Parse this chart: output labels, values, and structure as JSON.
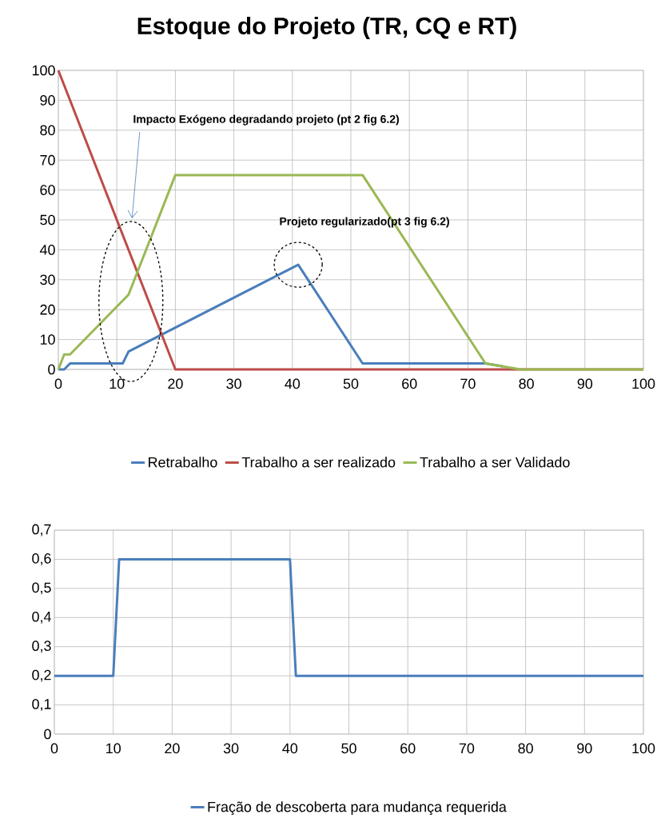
{
  "chart_data": [
    {
      "type": "line",
      "title": "Estoque do Projeto (TR, CQ e RT)",
      "xlim": [
        0,
        100
      ],
      "ylim": [
        0,
        100
      ],
      "xticks": [
        0,
        10,
        20,
        30,
        40,
        50,
        60,
        70,
        80,
        90,
        100
      ],
      "yticks": [
        0,
        10,
        20,
        30,
        40,
        50,
        60,
        70,
        80,
        90,
        100
      ],
      "grid": true,
      "legend": "bottom",
      "line_style": "solid",
      "marker": "none",
      "annotations": [
        "Impacto Exógeno degradando projeto (pt 2 fig 6.2)",
        "Projeto regularizado(pt 3 fig 6.2)"
      ],
      "series": [
        {
          "name": "Retrabalho",
          "color": "#4a7ebb",
          "x": [
            0,
            1,
            2,
            11,
            12,
            41,
            52,
            73,
            76
          ],
          "values": [
            0,
            0,
            2,
            2,
            6,
            35,
            2,
            2,
            1
          ]
        },
        {
          "name": "Trabalho a ser realizado",
          "color": "#be4b48",
          "x": [
            0,
            20,
            100
          ],
          "values": [
            100,
            0,
            0
          ]
        },
        {
          "name": "Trabalho a ser Validado",
          "color": "#98b954",
          "x": [
            0,
            1,
            2,
            12,
            20,
            52,
            73,
            76,
            79,
            100
          ],
          "values": [
            0,
            5,
            5,
            25,
            65,
            65,
            2,
            1,
            0,
            0
          ]
        }
      ]
    },
    {
      "type": "line",
      "xlim": [
        0,
        100
      ],
      "ylim": [
        0,
        0.7
      ],
      "xticks": [
        0,
        10,
        20,
        30,
        40,
        50,
        60,
        70,
        80,
        90,
        100
      ],
      "yticks": [
        0,
        {
          "value": 0.1,
          "label": "0,1"
        },
        {
          "value": 0.2,
          "label": "0,2"
        },
        {
          "value": 0.3,
          "label": "0,3"
        },
        {
          "value": 0.4,
          "label": "0,4"
        },
        {
          "value": 0.5,
          "label": "0,5"
        },
        {
          "value": 0.6,
          "label": "0,6"
        },
        {
          "value": 0.7,
          "label": "0,7"
        }
      ],
      "grid": true,
      "legend": "bottom",
      "line_style": "solid",
      "marker": "none",
      "series": [
        {
          "name": "Fração de descoberta para mudança requerida",
          "color": "#4a7ebb",
          "x": [
            0,
            10,
            11,
            40,
            41,
            100
          ],
          "values": [
            0.2,
            0.2,
            0.6,
            0.6,
            0.2,
            0.2
          ]
        }
      ]
    }
  ]
}
